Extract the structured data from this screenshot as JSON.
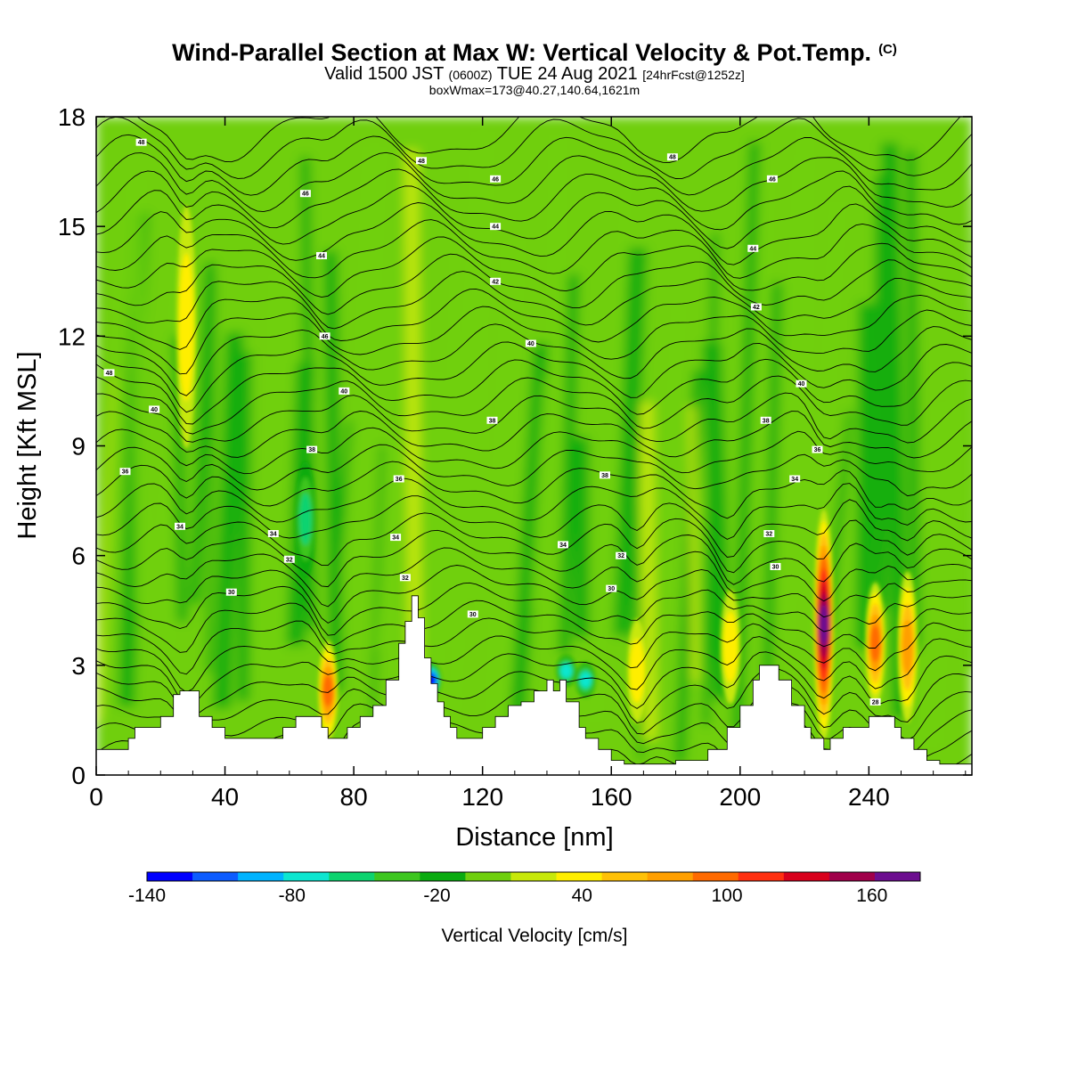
{
  "header": {
    "title": "Wind-Parallel Section at Max W: Vertical Velocity & Pot.Temp.",
    "title_mark": "(C)",
    "valid_prefix": "Valid 1500 JST",
    "valid_zulu": "(0600Z)",
    "valid_date": "TUE 24 Aug 2021",
    "valid_fcst": "[24hrFcst@1252z]",
    "box_info": "boxWmax=173@40.27,140.64,1621m"
  },
  "chart_data": {
    "type": "heatmap",
    "xlabel": "Distance [nm]",
    "ylabel": "Height [Kft MSL]",
    "xlim": [
      0,
      272
    ],
    "ylim": [
      0,
      18
    ],
    "x_ticks": [
      "0",
      "40",
      "80",
      "120",
      "160",
      "200",
      "240"
    ],
    "y_ticks": [
      "0",
      "3",
      "6",
      "9",
      "12",
      "15",
      "18"
    ],
    "colorbar": {
      "title": "Vertical Velocity [cm/s]",
      "min": -140,
      "max": 180,
      "step": 20,
      "tick_labels": [
        "-140",
        "-80",
        "-20",
        "40",
        "100",
        "160"
      ],
      "colors": [
        "#0000ff",
        "#0d5cff",
        "#00b3ff",
        "#0de6d0",
        "#0dd36f",
        "#3dc61f",
        "#0aab10",
        "#6fcf0e",
        "#c7e80a",
        "#ffee00",
        "#ffc107",
        "#ff9f00",
        "#ff6a00",
        "#ff3010",
        "#d8001c",
        "#a0004a",
        "#6c0e8f"
      ]
    },
    "background_value_range": [
      -20,
      20
    ],
    "updraft_cores": [
      {
        "x": 226,
        "y_bottom": 1.0,
        "y_top": 7.2,
        "w_max": 173
      },
      {
        "x": 242,
        "y_bottom": 2.0,
        "y_top": 5.2,
        "w_max": 100
      },
      {
        "x": 252,
        "y_bottom": 1.5,
        "y_top": 5.5,
        "w_max": 80
      },
      {
        "x": 72,
        "y_bottom": 1.0,
        "y_top": 3.6,
        "w_max": 90
      },
      {
        "x": 197,
        "y_bottom": 2.0,
        "y_top": 5.0,
        "w_max": 40
      },
      {
        "x": 168,
        "y_bottom": 1.5,
        "y_top": 4.2,
        "w_max": 40
      },
      {
        "x": 28,
        "y_bottom": 9.0,
        "y_top": 15.5,
        "w_max": 40
      }
    ],
    "downdraft_cores": [
      {
        "x": 104,
        "y_bottom": 2.2,
        "y_top": 3.0,
        "w_min": -130
      },
      {
        "x": 146,
        "y_bottom": 2.5,
        "y_top": 3.2,
        "w_min": -80
      },
      {
        "x": 152,
        "y_bottom": 2.2,
        "y_top": 3.0,
        "w_min": -80
      },
      {
        "x": 65,
        "y_bottom": 5.5,
        "y_top": 8.5,
        "w_min": -60
      }
    ],
    "terrain": {
      "x": [
        0,
        6,
        10,
        12,
        16,
        20,
        24,
        26,
        30,
        32,
        36,
        40,
        44,
        50,
        56,
        58,
        62,
        66,
        70,
        72,
        74,
        78,
        82,
        86,
        90,
        94,
        96,
        98,
        100,
        102,
        104,
        106,
        108,
        110,
        112,
        116,
        120,
        124,
        128,
        132,
        136,
        140,
        142,
        144,
        146,
        150,
        152,
        156,
        160,
        164,
        168,
        172,
        180,
        190,
        196,
        200,
        204,
        206,
        208,
        212,
        216,
        220,
        222,
        226,
        228,
        232,
        236,
        240,
        244,
        248,
        250,
        254,
        258,
        262,
        266,
        270,
        272
      ],
      "height_kft": [
        0.7,
        0.7,
        1.0,
        1.3,
        1.3,
        1.6,
        2.2,
        2.3,
        2.3,
        1.6,
        1.3,
        1.0,
        1.0,
        1.0,
        1.0,
        1.3,
        1.6,
        1.6,
        1.3,
        1.0,
        1.0,
        1.3,
        1.6,
        1.9,
        2.6,
        3.6,
        4.2,
        4.9,
        4.3,
        3.2,
        2.5,
        2.0,
        1.6,
        1.3,
        1.0,
        1.0,
        1.3,
        1.6,
        1.9,
        2.0,
        2.3,
        2.6,
        2.3,
        2.6,
        2.0,
        1.3,
        1.0,
        0.7,
        0.4,
        0.3,
        0.3,
        0.3,
        0.4,
        0.7,
        1.3,
        1.9,
        2.6,
        3.0,
        3.0,
        2.6,
        1.9,
        1.3,
        1.0,
        0.7,
        1.0,
        1.3,
        1.3,
        1.6,
        1.6,
        1.3,
        1.0,
        0.7,
        0.4,
        0.3,
        0.3,
        0.3,
        0.3
      ]
    },
    "isentropes": {
      "units": "label values as printed",
      "levels": [
        30,
        32,
        34,
        36,
        38,
        40,
        42,
        44,
        46,
        48
      ],
      "labels": [
        {
          "text": "48",
          "x": 14,
          "y": 17.3
        },
        {
          "text": "48",
          "x": 4,
          "y": 11.0
        },
        {
          "text": "40",
          "x": 18,
          "y": 10.0
        },
        {
          "text": "36",
          "x": 9,
          "y": 8.3
        },
        {
          "text": "34",
          "x": 26,
          "y": 6.8
        },
        {
          "text": "34",
          "x": 55,
          "y": 6.6
        },
        {
          "text": "32",
          "x": 60,
          "y": 5.9
        },
        {
          "text": "30",
          "x": 42,
          "y": 5.0
        },
        {
          "text": "46",
          "x": 65,
          "y": 15.9
        },
        {
          "text": "44",
          "x": 70,
          "y": 14.2
        },
        {
          "text": "46",
          "x": 71,
          "y": 12.0
        },
        {
          "text": "40",
          "x": 77,
          "y": 10.5
        },
        {
          "text": "38",
          "x": 67,
          "y": 8.9
        },
        {
          "text": "36",
          "x": 94,
          "y": 8.1
        },
        {
          "text": "34",
          "x": 93,
          "y": 6.5
        },
        {
          "text": "32",
          "x": 96,
          "y": 5.4
        },
        {
          "text": "30",
          "x": 117,
          "y": 4.4
        },
        {
          "text": "48",
          "x": 101,
          "y": 16.8
        },
        {
          "text": "46",
          "x": 124,
          "y": 16.3
        },
        {
          "text": "44",
          "x": 124,
          "y": 15.0
        },
        {
          "text": "42",
          "x": 124,
          "y": 13.5
        },
        {
          "text": "40",
          "x": 135,
          "y": 11.8
        },
        {
          "text": "38",
          "x": 123,
          "y": 9.7
        },
        {
          "text": "38",
          "x": 158,
          "y": 8.2
        },
        {
          "text": "34",
          "x": 145,
          "y": 6.3
        },
        {
          "text": "32",
          "x": 163,
          "y": 6.0
        },
        {
          "text": "30",
          "x": 160,
          "y": 5.1
        },
        {
          "text": "48",
          "x": 179,
          "y": 16.9
        },
        {
          "text": "46",
          "x": 210,
          "y": 16.3
        },
        {
          "text": "44",
          "x": 204,
          "y": 14.4
        },
        {
          "text": "42",
          "x": 205,
          "y": 12.8
        },
        {
          "text": "40",
          "x": 219,
          "y": 10.7
        },
        {
          "text": "38",
          "x": 208,
          "y": 9.7
        },
        {
          "text": "36",
          "x": 224,
          "y": 8.9
        },
        {
          "text": "34",
          "x": 217,
          "y": 8.1
        },
        {
          "text": "32",
          "x": 209,
          "y": 6.6
        },
        {
          "text": "30",
          "x": 211,
          "y": 5.7
        },
        {
          "text": "28",
          "x": 242,
          "y": 2.0
        }
      ]
    }
  }
}
